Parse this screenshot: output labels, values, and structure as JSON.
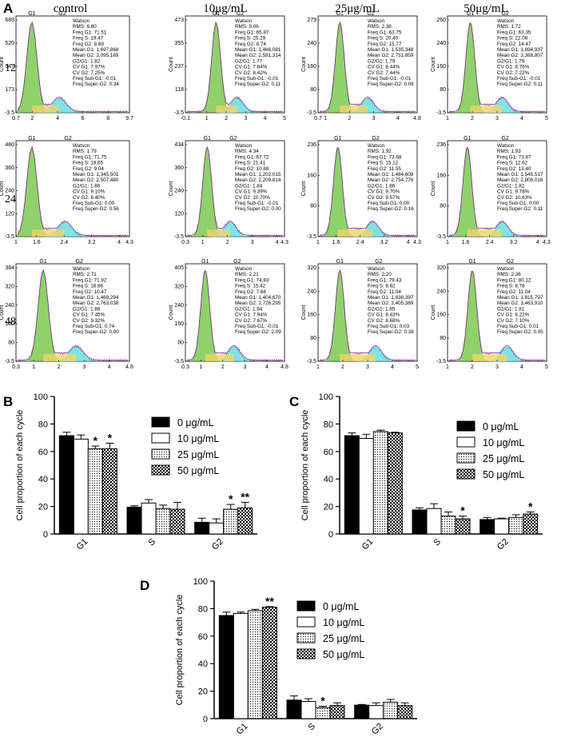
{
  "panel_labels": {
    "A": "A",
    "B": "B",
    "C": "C",
    "D": "D"
  },
  "flow": {
    "columns": [
      "control",
      "10μg/mL",
      "25μg/mL",
      "50μg/mL"
    ],
    "rows": [
      {
        "label": "12 h",
        "plots": [
          {
            "yt": [
              "689",
              "520",
              "347",
              "173",
              "-3.5"
            ],
            "xt": [
              "0.7",
              "2",
              "4",
              "6",
              "8",
              "9.7"
            ],
            "xr": [
              0.7,
              9.7
            ],
            "p1": 0.14,
            "p2": 0.38,
            "stats": [
              "Watson",
              "RMS: 6.80",
              "Freq G1: 71.51",
              "Freq S: 19.47",
              "Freq G2: 8.69",
              "Mean G1: 1,697,868",
              "Mean G2: 3,095,169",
              "G2/G1: 1.82",
              "CV G1: 7.97%",
              "CV G2: 7.25%",
              "Freq Sub-G1: -0.01",
              "Freq Super-G2: 0.34"
            ]
          },
          {
            "yt": [
              "473",
              "355",
              "237",
              "118",
              "-3.5"
            ],
            "xt": [
              "-0.1",
              "1",
              "2",
              "3",
              "4",
              "5"
            ],
            "xr": [
              -0.1,
              5
            ],
            "p1": 0.31,
            "p2": 0.52,
            "stats": [
              "Watson",
              "RMS: 5.06",
              "Freq G1: 65.87",
              "Freq S: 25.29",
              "Freq G2: 8.74",
              "Mean G1: 1,466,081",
              "Mean G2: 2,591,314",
              "G2/G1: 1.77",
              "CV G1: 7.84%",
              "CV G2: 8.42%",
              "Freq Sub-G1: -0.01",
              "Freq Super-G2: 0.11"
            ]
          },
          {
            "yt": [
              "279",
              "240",
              "160",
              "80",
              "-3.5"
            ],
            "xt": [
              "0.7",
              "1",
              "2",
              "3",
              "4",
              "4.8"
            ],
            "xr": [
              0.7,
              4.8
            ],
            "p1": 0.22,
            "p2": 0.5,
            "stats": [
              "Watson",
              "RMS: 2.38",
              "Freq G1: 63.75",
              "Freq S: 20.40",
              "Freq G2: 15.77",
              "Mean G1: 1,535,348",
              "Mean G2: 2,751,859",
              "G2/G1: 1.79",
              "CV G1: 8.44%",
              "CV G2: 7.44%",
              "Freq Sub-G1: -0.01",
              "Freq Super-G2: 0.08"
            ]
          },
          {
            "yt": [
              "260",
              "240",
              "160",
              "80",
              "-3.5"
            ],
            "xt": [
              "1",
              "2",
              "3",
              "4",
              "5"
            ],
            "xr": [
              1,
              5
            ],
            "p1": 0.23,
            "p2": 0.55,
            "stats": [
              "Watson",
              "RMS: 1.72",
              "Freq G1: 63.35",
              "Freq S: 22.08",
              "Freq G2: 14.47",
              "Mean G1: 1,894,937",
              "Mean G2: 3,388,807",
              "G2/G1: 1.79",
              "CV G1: 8.76%",
              "CV G2: 7.22%",
              "Freq Sub-G1: -0.01",
              "Freq Super-G2: 0.11"
            ]
          }
        ]
      },
      {
        "label": "24 h",
        "plots": [
          {
            "yt": [
              "480",
              "360",
              "240",
              "120",
              "-3.5"
            ],
            "xt": [
              "1",
              "1.6",
              "2.4",
              "3.2",
              "4",
              "4.3"
            ],
            "xr": [
              1,
              4.3
            ],
            "p1": 0.14,
            "p2": 0.43,
            "stats": [
              "Watson",
              "RMS: 1.79",
              "Freq G1: 71.75",
              "Freq S: 18.65",
              "Freq G2: 9.04",
              "Mean G1: 1,345,501",
              "Mean G2: 2,507,480",
              "G2/G1: 1.86",
              "CV G1: 9.10%",
              "CV G2: 8.40%",
              "Freq Sub-G1: 0.00",
              "Freq Super-G2: 0.56"
            ]
          },
          {
            "yt": [
              "434",
              "360",
              "240",
              "120",
              "-3.5"
            ],
            "xt": [
              "0.3",
              "1",
              "2",
              "3",
              "4",
              "4.3"
            ],
            "xr": [
              0.3,
              4.3
            ],
            "p1": 0.22,
            "p2": 0.45,
            "stats": [
              "Watson",
              "RMS: 4.34",
              "Freq G1: 67.72",
              "Freq S: 21.41",
              "Freq G2: 10.88",
              "Mean G1: 1,202,015",
              "Mean G2: 2,209,814",
              "G2/G1: 1.84",
              "CV G1: 9.39%",
              "CV G2: 10.70%",
              "Freq Sub-G1: -0.01",
              "Freq Super-G2: 0.00"
            ]
          },
          {
            "yt": [
              "236",
              "160",
              "80",
              "-3.5"
            ],
            "xt": [
              "1",
              "1.6",
              "2.4",
              "3.2",
              "4",
              "4.3"
            ],
            "xr": [
              1,
              4.3
            ],
            "p1": 0.2,
            "p2": 0.55,
            "stats": [
              "Watson",
              "RMS: 1.92",
              "Freq G1: 73.68",
              "Freq S: 15.12",
              "Freq G2: 11.55",
              "Mean G1: 1,484,608",
              "Mean G2: 2,754,776",
              "G2/G1: 1.86",
              "CV G1: 9.70%",
              "CV G2: 9.57%",
              "Freq Sub-G1: 0.00",
              "Freq Super-G2: 0.16"
            ]
          },
          {
            "yt": [
              "236",
              "160",
              "80",
              "-3.5"
            ],
            "xt": [
              "1",
              "1.6",
              "2.4",
              "3.2",
              "4",
              "4.3"
            ],
            "xr": [
              1,
              4.3
            ],
            "p1": 0.2,
            "p2": 0.55,
            "stats": [
              "Watson",
              "RMS: 1.93",
              "Freq G1: 73.87",
              "Freq S: 12.62",
              "Freq G2: 13.40",
              "Mean G1: 1,545,517",
              "Mean G2: 2,806,016",
              "G2/G1: 1.82",
              "CV G1: 9.78%",
              "CV G2: 10.63%",
              "Freq Sub-G1: 0.00",
              "Freq Super-G2: 0.11"
            ]
          }
        ]
      },
      {
        "label": "48 h",
        "plots": [
          {
            "yt": [
              "384",
              "320",
              "240",
              "160",
              "80",
              "-3.5"
            ],
            "xt": [
              "0.3",
              "1",
              "2",
              "3",
              "4",
              "4.8"
            ],
            "xr": [
              0.3,
              4.8
            ],
            "p1": 0.24,
            "p2": 0.53,
            "stats": [
              "Watson",
              "RMS: 2.71",
              "Freq G1: 71.92",
              "Freq S: 16.86",
              "Freq G2: 10.47",
              "Mean G1: 1,469,294",
              "Mean G2: 2,763,038",
              "G2/G1: 1.88",
              "CV G1: 7.45%",
              "CV G2: 9.32%",
              "Freq Sub-G1: 0.74",
              "Freq Super-G2: 0.00"
            ]
          },
          {
            "yt": [
              "405",
              "320",
              "240",
              "160",
              "80",
              "-3.5"
            ],
            "xt": [
              "0.3",
              "1",
              "2",
              "3",
              "4",
              "4.8"
            ],
            "xr": [
              0.3,
              4.8
            ],
            "p1": 0.2,
            "p2": 0.49,
            "stats": [
              "Watson",
              "RMS: 2.21",
              "Freq G1: 74.83",
              "Freq S: 15.42",
              "Freq G2: 7.68",
              "Mean G1: 1,404,670",
              "Mean G2: 2,726,295",
              "G2/G1: 1.94",
              "CV G1: 7.94%",
              "CV G2: 7.67%",
              "Freq Sub-G1: -0.01",
              "Freq Super-G2: 2.09"
            ]
          },
          {
            "yt": [
              "320",
              "240",
              "160",
              "80",
              "-3.5"
            ],
            "xt": [
              "1",
              "2",
              "3",
              "4",
              "5"
            ],
            "xr": [
              1,
              5
            ],
            "p1": 0.22,
            "p2": 0.58,
            "stats": [
              "Watson",
              "RMS: 2.20",
              "Freq G1: 79.43",
              "Freq S: 8.62",
              "Freq G2: 11.04",
              "Mean G1: 1,838,397",
              "Mean G2: 3,405,369",
              "G2/G1: 1.85",
              "CV G1: 8.43%",
              "CV G2: 8.68%",
              "Freq Sub-G1: 0.03",
              "Freq Super-G2: 0.38"
            ]
          },
          {
            "yt": [
              "320",
              "240",
              "160",
              "80",
              "-3.5"
            ],
            "xt": [
              "1",
              "2",
              "3",
              "4",
              "5"
            ],
            "xr": [
              1,
              5
            ],
            "p1": 0.25,
            "p2": 0.6,
            "stats": [
              "Watson",
              "RMS: 2.36",
              "Freq G1: 80.12",
              "Freq S: 8.78",
              "Freq G2: 11.04",
              "Mean G1: 1,815,797",
              "Mean G2: 3,463,910",
              "G2/G1: 1.81",
              "CV G1: 8.22%",
              "CV G2: 7.10%",
              "Freq Sub-G1: 0.01",
              "Freq Super-G2: 0.05"
            ]
          }
        ]
      }
    ],
    "peak_labels": [
      "G1",
      "G2"
    ],
    "y_axis_label": "Count"
  },
  "chart_data": [
    {
      "panel": "B",
      "type": "bar",
      "categories": [
        "G1",
        "S",
        "G2"
      ],
      "series": [
        {
          "name": "0 μg/mL",
          "values": [
            71.5,
            19.5,
            8.5
          ],
          "errors": [
            2.5,
            1,
            3
          ]
        },
        {
          "name": "10 μg/mL",
          "values": [
            69,
            22.5,
            8
          ],
          "errors": [
            3,
            2.5,
            3
          ]
        },
        {
          "name": "25 μg/mL",
          "values": [
            62,
            18.5,
            18
          ],
          "errors": [
            2,
            2.5,
            3.5
          ]
        },
        {
          "name": "50 μg/mL",
          "values": [
            62,
            18,
            19
          ],
          "errors": [
            4,
            5,
            4
          ]
        }
      ],
      "significance": [
        [
          "",
          "",
          "*",
          "*"
        ],
        [
          "",
          "",
          "",
          ""
        ],
        [
          "",
          "",
          "*",
          "**"
        ]
      ],
      "ylabel": "Cell proportion of each cycle",
      "ylim": [
        0,
        100
      ],
      "yticks": [
        "0",
        "20",
        "40",
        "60",
        "80",
        "100"
      ]
    },
    {
      "panel": "C",
      "type": "bar",
      "categories": [
        "G1",
        "S",
        "G2"
      ],
      "series": [
        {
          "name": "0 μg/mL",
          "values": [
            71.5,
            17.5,
            10.5
          ],
          "errors": [
            2,
            1.5,
            1.5
          ]
        },
        {
          "name": "10 μg/mL",
          "values": [
            69.5,
            18.5,
            11
          ],
          "errors": [
            3,
            3.5,
            0.5
          ]
        },
        {
          "name": "25 μg/mL",
          "values": [
            74.5,
            13,
            12
          ],
          "errors": [
            1,
            3,
            2
          ]
        },
        {
          "name": "50 μg/mL",
          "values": [
            73.5,
            11,
            14.5
          ],
          "errors": [
            0.5,
            2,
            1.5
          ]
        }
      ],
      "significance": [
        [
          "",
          "",
          "",
          ""
        ],
        [
          "",
          "",
          "",
          "*"
        ],
        [
          "",
          "",
          "",
          "*"
        ]
      ],
      "ylabel": "Cell proportion of each cycle",
      "ylim": [
        0,
        100
      ],
      "yticks": [
        "0",
        "20",
        "40",
        "60",
        "80",
        "100"
      ]
    },
    {
      "panel": "D",
      "type": "bar",
      "categories": [
        "G1",
        "S",
        "G2"
      ],
      "series": [
        {
          "name": "0 μg/mL",
          "values": [
            75,
            13.5,
            9.8
          ],
          "errors": [
            2.5,
            3,
            0.5
          ]
        },
        {
          "name": "10 μg/mL",
          "values": [
            76.5,
            12.5,
            9.5
          ],
          "errors": [
            1,
            2,
            2
          ]
        },
        {
          "name": "25 μg/mL",
          "values": [
            78.5,
            8,
            12
          ],
          "errors": [
            1,
            1,
            2
          ]
        },
        {
          "name": "50 μg/mL",
          "values": [
            81,
            9.5,
            9.5
          ],
          "errors": [
            0.5,
            2,
            2
          ]
        }
      ],
      "significance": [
        [
          "",
          "",
          "",
          "**"
        ],
        [
          "",
          "",
          "*",
          ""
        ],
        [
          "",
          "",
          "",
          ""
        ]
      ],
      "ylabel": "Cell proportion of each cycle",
      "ylim": [
        0,
        100
      ],
      "yticks": [
        "0",
        "20",
        "40",
        "60",
        "80",
        "100"
      ]
    }
  ]
}
